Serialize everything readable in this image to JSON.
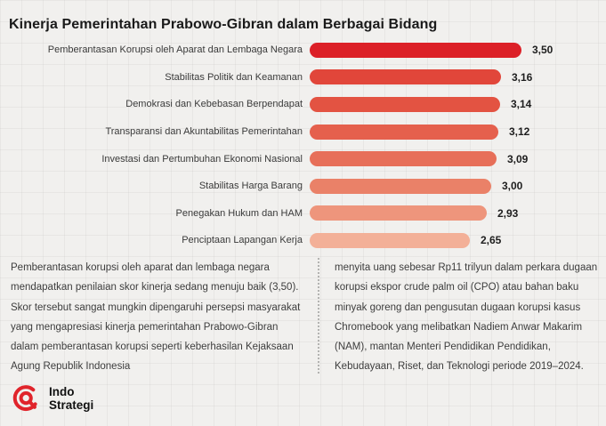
{
  "title": "Kinerja Pemerintahan Prabowo-Gibran dalam Berbagai Bidang",
  "chart_data": {
    "type": "bar",
    "orientation": "horizontal",
    "title": "Kinerja Pemerintahan Prabowo-Gibran dalam Berbagai Bidang",
    "categories": [
      "Pemberantasan Korupsi oleh Aparat dan Lembaga Negara",
      "Stabilitas Politik dan Keamanan",
      "Demokrasi dan Kebebasan Berpendapat",
      "Transparansi dan Akuntabilitas Pemerintahan",
      "Investasi dan Pertumbuhan Ekonomi Nasional",
      "Stabilitas Harga Barang",
      "Penegakan Hukum dan HAM",
      "Penciptaan Lapangan Kerja"
    ],
    "values": [
      3.5,
      3.16,
      3.14,
      3.12,
      3.09,
      3.0,
      2.93,
      2.65
    ],
    "value_labels": [
      "3,50",
      "3,16",
      "3,14",
      "3,12",
      "3,09",
      "3,00",
      "2,93",
      "2,65"
    ],
    "bar_colors": [
      "#dc2027",
      "#e1463a",
      "#e35342",
      "#e5604d",
      "#e76f59",
      "#ea8168",
      "#ee957c",
      "#f3b098"
    ],
    "xlim": [
      0,
      3.5
    ],
    "grid": false,
    "legend": "none",
    "value_label_position": "right-of-bar"
  },
  "body": {
    "left_paragraph": "Pemberantasan korupsi oleh aparat dan lembaga negara mendapatkan penilaian skor kinerja sedang menuju baik (3,50). Skor tersebut sangat mungkin dipengaruhi persepsi masyarakat yang mengapresiasi kinerja pemerintahan Prabowo-Gibran dalam pemberantasan korupsi seperti keberhasilan Kejaksaan Agung Republik Indonesia",
    "right_paragraph": "menyita uang sebesar Rp11 trilyun dalam perkara dugaan korupsi ekspor crude palm oil (CPO) atau bahan baku minyak goreng dan pengusutan dugaan korupsi kasus Chromebook yang melibatkan Nadiem Anwar Makarim (NAM), mantan Menteri Pendidikan Pendidikan, Kebudayaan, Riset, dan Teknologi periode 2019–2024."
  },
  "footer": {
    "logo_line1": "Indo",
    "logo_line2": "Strategi",
    "logo_icon": "at-symbol-icon",
    "logo_color": "#e0242b"
  },
  "colors": {
    "background": "#f1f0ee",
    "title_text": "#1a1a1a",
    "body_text": "#3d3d3d",
    "divider": "#b3b3b1"
  }
}
